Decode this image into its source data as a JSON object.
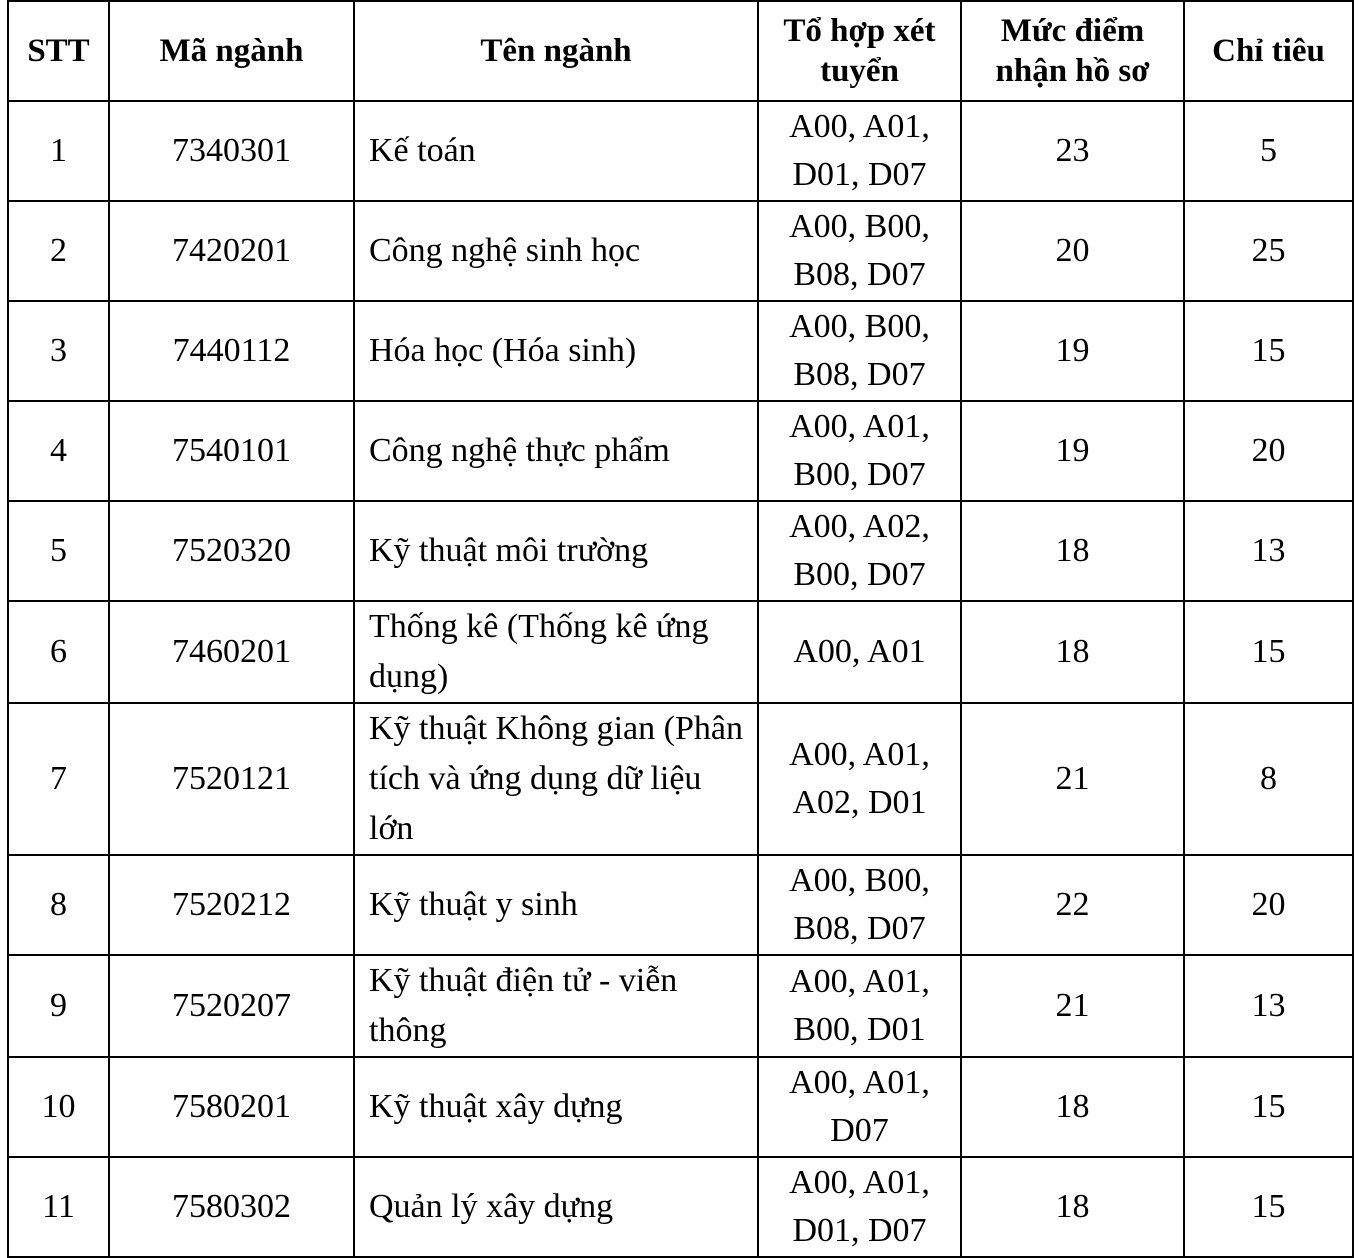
{
  "table": {
    "headers": [
      "STT",
      "Mã ngành",
      "Tên ngành",
      "Tổ hợp xét tuyển",
      "Mức điểm nhận hồ sơ",
      "Chỉ tiêu"
    ],
    "rows": [
      {
        "stt": "1",
        "code": "7340301",
        "name": "Kế toán",
        "combos": "A00, A01, D01, D07",
        "score": "23",
        "quota": "5"
      },
      {
        "stt": "2",
        "code": "7420201",
        "name": "Công nghệ sinh học",
        "combos": "A00, B00, B08, D07",
        "score": "20",
        "quota": "25"
      },
      {
        "stt": "3",
        "code": "7440112",
        "name": "Hóa học (Hóa sinh)",
        "combos": "A00, B00, B08, D07",
        "score": "19",
        "quota": "15"
      },
      {
        "stt": "4",
        "code": "7540101",
        "name": "Công nghệ thực phẩm",
        "combos": "A00, A01, B00, D07",
        "score": "19",
        "quota": "20"
      },
      {
        "stt": "5",
        "code": "7520320",
        "name": "Kỹ thuật môi trường",
        "combos": "A00, A02, B00, D07",
        "score": "18",
        "quota": "13"
      },
      {
        "stt": "6",
        "code": "7460201",
        "name": "Thống kê (Thống kê ứng dụng)",
        "combos": "A00, A01",
        "score": "18",
        "quota": "15"
      },
      {
        "stt": "7",
        "code": "7520121",
        "name": "Kỹ thuật Không gian (Phân tích và ứng dụng dữ liệu lớn",
        "combos": "A00, A01, A02, D01",
        "score": "21",
        "quota": "8"
      },
      {
        "stt": "8",
        "code": "7520212",
        "name": "Kỹ thuật y sinh",
        "combos": "A00, B00, B08, D07",
        "score": "22",
        "quota": "20"
      },
      {
        "stt": "9",
        "code": "7520207",
        "name": "Kỹ thuật điện tử - viễn thông",
        "combos": "A00, A01, B00, D01",
        "score": "21",
        "quota": "13"
      },
      {
        "stt": "10",
        "code": "7580201",
        "name": "Kỹ thuật xây dựng",
        "combos": "A00, A01, D07",
        "score": "18",
        "quota": "15"
      },
      {
        "stt": "11",
        "code": "7580302",
        "name": "Quản lý xây dựng",
        "combos": "A00, A01, D01, D07",
        "score": "18",
        "quota": "15"
      }
    ]
  }
}
